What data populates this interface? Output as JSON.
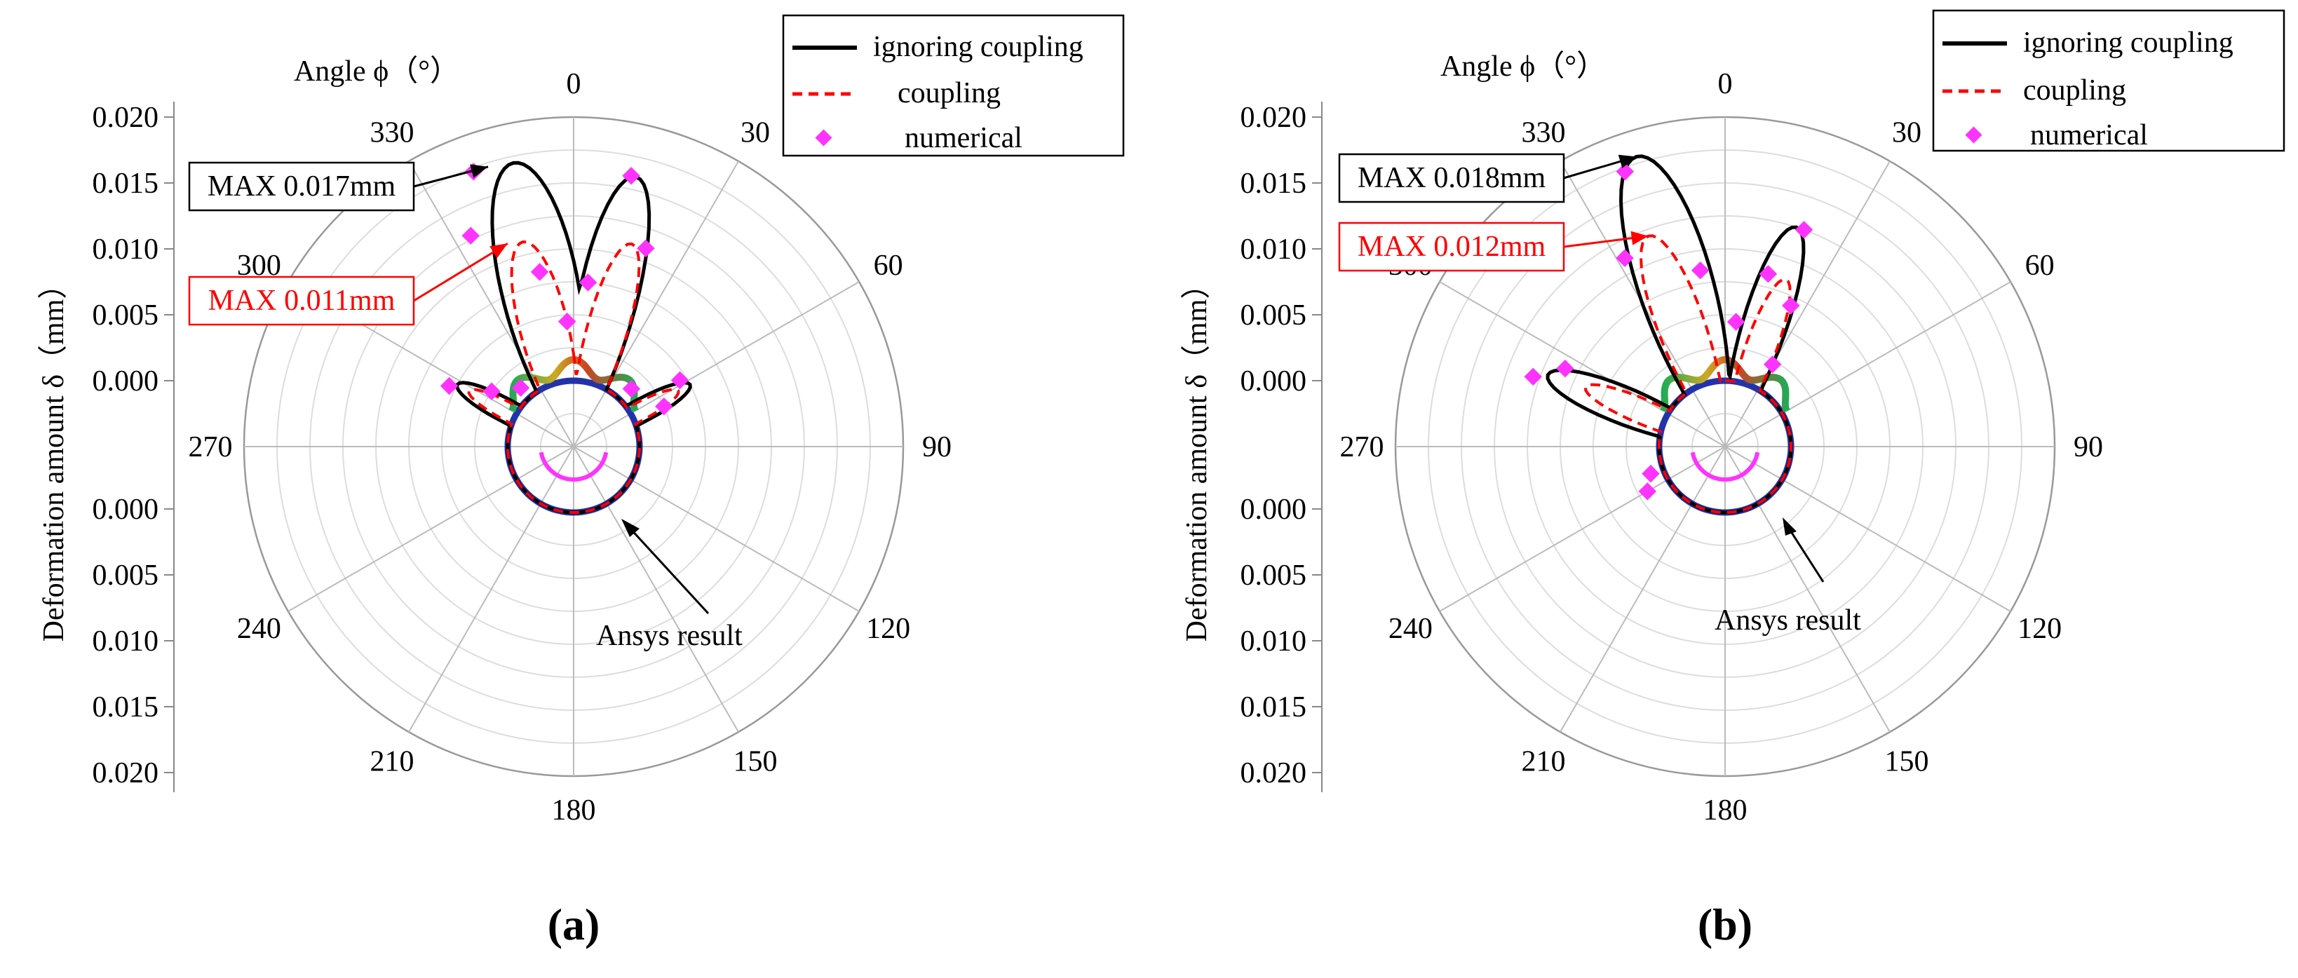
{
  "colors": {
    "ignoring": "#000000",
    "coupling": "#ff0000",
    "numerical": "#ff33ff",
    "grid": "#bbbbbb",
    "ansys": "#2233aa"
  },
  "chart_data": [
    {
      "type": "polar-line",
      "panel_label": "(a)",
      "angle_label": "Angle ϕ（°）",
      "radial_label": "Deformation amount δ（mm）",
      "angle_ticks": [
        "0",
        "30",
        "60",
        "90",
        "120",
        "150",
        "180",
        "210",
        "240",
        "270",
        "300",
        "330"
      ],
      "radial_ticks_upper": [
        "0.020",
        "0.015",
        "0.010",
        "0.005",
        "0.000"
      ],
      "radial_ticks_lower": [
        "0.000",
        "0.005",
        "0.010",
        "0.015",
        "0.020"
      ],
      "r_range": [
        -0.005,
        0.02
      ],
      "legend": [
        "ignoring coupling",
        "coupling",
        "numerical"
      ],
      "series": [
        {
          "name": "ignoring coupling",
          "style": "solid",
          "lobes": [
            {
              "center": 348,
              "width": 28,
              "peak": 0.017
            },
            {
              "center": 13,
              "width": 22,
              "peak": 0.016
            },
            {
              "center": 298,
              "width": 18,
              "peak": 0.005
            },
            {
              "center": 62,
              "width": 18,
              "peak": 0.005
            }
          ]
        },
        {
          "name": "coupling",
          "style": "dashed",
          "lobes": [
            {
              "center": 346,
              "width": 24,
              "peak": 0.011
            },
            {
              "center": 16,
              "width": 20,
              "peak": 0.011
            },
            {
              "center": 298,
              "width": 16,
              "peak": 0.004
            },
            {
              "center": 62,
              "width": 16,
              "peak": 0.004
            }
          ]
        }
      ],
      "numerical_points": [
        {
          "angle": 340,
          "r": 0.0172
        },
        {
          "angle": 334,
          "r": 0.0128
        },
        {
          "angle": 349,
          "r": 0.0085
        },
        {
          "angle": 357,
          "r": 0.0045
        },
        {
          "angle": 5,
          "r": 0.0075
        },
        {
          "angle": 12,
          "r": 0.016
        },
        {
          "angle": 20,
          "r": 0.011
        },
        {
          "angle": 296,
          "r": 0.0055
        },
        {
          "angle": 304,
          "r": 0.0025
        },
        {
          "angle": 318,
          "r": 0.001
        },
        {
          "angle": 58,
          "r": 0.0045
        },
        {
          "angle": 66,
          "r": 0.0025
        },
        {
          "angle": 45,
          "r": 0.0012
        }
      ],
      "annotations": [
        {
          "text": "MAX 0.017mm",
          "color": "#000000",
          "angle": 343,
          "r": 0.0172
        },
        {
          "text": "MAX 0.011mm",
          "color": "#ff0000",
          "angle": 342,
          "r": 0.0112
        }
      ],
      "ansys_label": "Ansys  result"
    },
    {
      "type": "polar-line",
      "panel_label": "(b)",
      "angle_label": "Angle ϕ（°）",
      "radial_label": "Deformation amount δ（mm）",
      "angle_ticks": [
        "0",
        "30",
        "60",
        "90",
        "120",
        "150",
        "180",
        "210",
        "240",
        "270",
        "300",
        "330"
      ],
      "radial_ticks_upper": [
        "0.020",
        "0.015",
        "0.010",
        "0.005",
        "0.000"
      ],
      "radial_ticks_lower": [
        "0.000",
        "0.005",
        "0.010",
        "0.015",
        "0.020"
      ],
      "r_range": [
        -0.005,
        0.02
      ],
      "legend": [
        "ignoring coupling",
        "coupling",
        "numerical"
      ],
      "series": [
        {
          "name": "ignoring coupling",
          "style": "solid",
          "lobes": [
            {
              "center": 343,
              "width": 26,
              "peak": 0.018
            },
            {
              "center": 18,
              "width": 20,
              "peak": 0.0125
            },
            {
              "center": 292,
              "width": 20,
              "peak": 0.0095
            }
          ]
        },
        {
          "name": "coupling",
          "style": "dashed",
          "lobes": [
            {
              "center": 340,
              "width": 22,
              "peak": 0.012
            },
            {
              "center": 20,
              "width": 18,
              "peak": 0.0085
            },
            {
              "center": 293,
              "width": 17,
              "peak": 0.0065
            }
          ]
        }
      ],
      "numerical_points": [
        {
          "angle": 340,
          "r": 0.0172
        },
        {
          "angle": 332,
          "r": 0.0112
        },
        {
          "angle": 352,
          "r": 0.0085
        },
        {
          "angle": 5,
          "r": 0.0045
        },
        {
          "angle": 14,
          "r": 0.0085
        },
        {
          "angle": 20,
          "r": 0.0125
        },
        {
          "angle": 25,
          "r": 0.0068
        },
        {
          "angle": 290,
          "r": 0.0105
        },
        {
          "angle": 296,
          "r": 0.0085
        },
        {
          "angle": 30,
          "r": 0.0022
        },
        {
          "angle": 240,
          "r": 0.0018
        },
        {
          "angle": 250,
          "r": 0.001
        }
      ],
      "annotations": [
        {
          "text": "MAX 0.018mm",
          "color": "#000000",
          "angle": 343,
          "r": 0.018
        },
        {
          "text": "MAX 0.012mm",
          "color": "#ff0000",
          "angle": 340,
          "r": 0.012
        }
      ],
      "ansys_label": "Ansys result"
    }
  ]
}
